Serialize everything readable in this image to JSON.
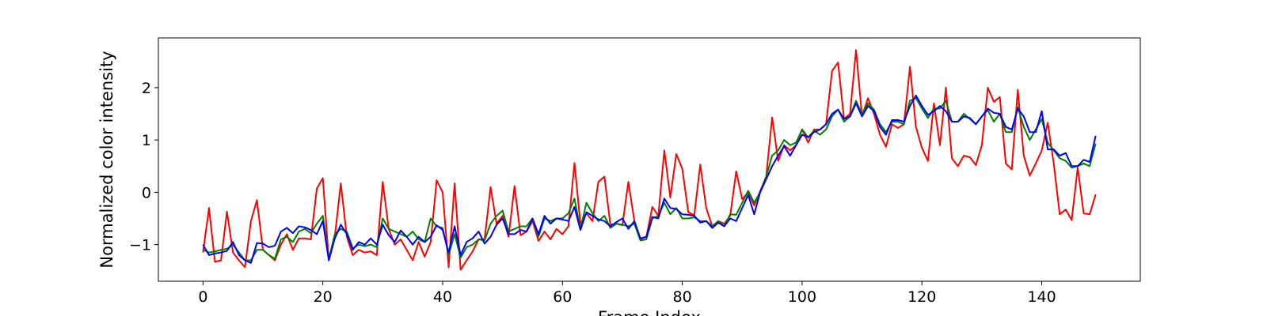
{
  "chart_data": {
    "type": "line",
    "title": "",
    "xlabel": "Frame Index",
    "ylabel": "Normalized color intensity",
    "xlim": [
      -7.45,
      156.45
    ],
    "ylim": [
      -1.7,
      2.95
    ],
    "xticks": [
      0,
      20,
      40,
      60,
      80,
      100,
      120,
      140
    ],
    "yticks": [
      -1,
      0,
      1,
      2
    ],
    "grid": false,
    "legend": "none",
    "series": [
      {
        "color": "#ff0000",
        "x_start": 0,
        "values": [
          -1.15,
          -0.3,
          -1.33,
          -1.3,
          -0.37,
          -1.15,
          -1.3,
          -1.43,
          -0.55,
          -0.15,
          -1.1,
          -1.2,
          -1.3,
          -1.0,
          -0.8,
          -1.1,
          -0.88,
          -0.88,
          -0.9,
          0.07,
          0.27,
          -1.3,
          -0.85,
          0.17,
          -0.85,
          -1.2,
          -1.1,
          -1.15,
          -1.13,
          -1.2,
          0.2,
          -0.7,
          -1.0,
          -0.9,
          -1.1,
          -1.3,
          -0.95,
          -1.23,
          -0.95,
          0.23,
          0.0,
          -1.43,
          0.17,
          -1.48,
          -1.3,
          -1.13,
          -0.9,
          -0.9,
          0.1,
          -0.6,
          -0.45,
          -0.85,
          0.12,
          -0.82,
          -0.75,
          -0.55,
          -0.93,
          -0.75,
          -0.9,
          -0.7,
          -0.8,
          -0.65,
          0.56,
          -0.6,
          -0.4,
          -0.55,
          0.2,
          0.3,
          -0.62,
          -0.6,
          -0.63,
          0.2,
          -0.55,
          -0.9,
          -0.85,
          -0.28,
          -0.45,
          0.8,
          -0.1,
          0.73,
          0.45,
          -0.38,
          -0.44,
          0.53,
          -0.3,
          -0.65,
          -0.55,
          -0.6,
          -0.45,
          0.4,
          -0.13,
          0.0,
          -0.25,
          0.02,
          0.3,
          1.43,
          0.6,
          0.9,
          0.8,
          0.9,
          1.2,
          0.95,
          1.2,
          1.2,
          1.3,
          2.32,
          2.48,
          1.4,
          1.5,
          2.72,
          1.45,
          1.8,
          1.5,
          1.1,
          0.87,
          1.3,
          1.23,
          1.3,
          2.4,
          1.25,
          0.85,
          0.6,
          1.7,
          0.9,
          2.0,
          0.65,
          0.5,
          0.7,
          0.67,
          0.52,
          0.9,
          2.0,
          1.73,
          1.82,
          0.55,
          0.44,
          1.96,
          0.7,
          0.32,
          0.55,
          0.8,
          1.33,
          0.55,
          -0.42,
          -0.33,
          -0.53,
          0.47,
          -0.4,
          -0.42,
          -0.04
        ]
      },
      {
        "color": "#008000",
        "x_start": 0,
        "values": [
          -1.1,
          -1.15,
          -1.13,
          -1.1,
          -1.08,
          -1.0,
          -1.15,
          -1.3,
          -1.3,
          -1.1,
          -1.1,
          -1.2,
          -1.27,
          -0.9,
          -0.85,
          -0.95,
          -0.75,
          -0.7,
          -0.78,
          -0.6,
          -0.45,
          -1.28,
          -0.8,
          -0.7,
          -0.75,
          -1.07,
          -1.0,
          -1.03,
          -1.0,
          -1.05,
          -0.5,
          -0.7,
          -0.75,
          -0.8,
          -0.85,
          -0.75,
          -0.9,
          -0.95,
          -0.5,
          -0.65,
          -0.68,
          -1.2,
          -0.8,
          -1.25,
          -1.05,
          -1.0,
          -0.9,
          -0.92,
          -0.6,
          -0.45,
          -0.35,
          -0.75,
          -0.7,
          -0.65,
          -0.65,
          -0.5,
          -0.85,
          -0.5,
          -0.55,
          -0.5,
          -0.5,
          -0.4,
          -0.12,
          -0.7,
          -0.2,
          -0.4,
          -0.55,
          -0.45,
          -0.68,
          -0.6,
          -0.62,
          -0.65,
          -0.6,
          -0.92,
          -0.9,
          -0.5,
          -0.45,
          -0.2,
          -0.42,
          -0.3,
          -0.5,
          -0.5,
          -0.48,
          -0.55,
          -0.55,
          -0.65,
          -0.55,
          -0.65,
          -0.42,
          -0.43,
          -0.2,
          0.03,
          -0.2,
          0.0,
          0.3,
          0.7,
          0.8,
          1.0,
          0.9,
          0.95,
          1.2,
          1.05,
          1.18,
          1.1,
          1.2,
          1.45,
          1.58,
          1.35,
          1.45,
          1.75,
          1.5,
          1.7,
          1.58,
          1.3,
          1.15,
          1.35,
          1.35,
          1.3,
          1.75,
          1.8,
          1.6,
          1.42,
          1.6,
          1.6,
          1.75,
          1.35,
          1.35,
          1.5,
          1.4,
          1.3,
          1.45,
          1.57,
          1.35,
          1.5,
          1.15,
          1.15,
          1.63,
          1.25,
          1.0,
          1.2,
          1.4,
          0.95,
          0.8,
          0.65,
          0.6,
          0.47,
          0.5,
          0.55,
          0.5,
          0.93
        ]
      },
      {
        "color": "#0000ff",
        "x_start": 0,
        "values": [
          -1.0,
          -1.2,
          -1.17,
          -1.15,
          -1.12,
          -0.95,
          -1.2,
          -1.3,
          -1.35,
          -0.97,
          -0.98,
          -1.05,
          -1.02,
          -0.75,
          -0.68,
          -0.78,
          -0.65,
          -0.67,
          -0.72,
          -0.8,
          -0.55,
          -1.3,
          -0.88,
          -0.62,
          -0.8,
          -1.1,
          -0.95,
          -1.0,
          -0.88,
          -1.0,
          -0.62,
          -0.82,
          -0.95,
          -0.73,
          -0.85,
          -1.0,
          -0.85,
          -0.95,
          -0.85,
          -0.63,
          -0.72,
          -1.15,
          -0.65,
          -1.2,
          -0.95,
          -0.88,
          -0.75,
          -0.98,
          -0.85,
          -0.62,
          -0.5,
          -0.8,
          -0.8,
          -0.72,
          -0.75,
          -0.5,
          -0.8,
          -0.45,
          -0.6,
          -0.5,
          -0.52,
          -0.55,
          -0.28,
          -0.72,
          -0.38,
          -0.45,
          -0.52,
          -0.55,
          -0.65,
          -0.57,
          -0.5,
          -0.7,
          -0.55,
          -0.88,
          -0.85,
          -0.47,
          -0.5,
          -0.12,
          -0.3,
          -0.32,
          -0.42,
          -0.43,
          -0.45,
          -0.58,
          -0.55,
          -0.68,
          -0.58,
          -0.65,
          -0.5,
          -0.55,
          -0.3,
          -0.05,
          -0.42,
          0.0,
          0.25,
          0.5,
          0.7,
          0.88,
          0.7,
          0.9,
          1.1,
          1.05,
          1.15,
          1.2,
          1.3,
          1.5,
          1.58,
          1.4,
          1.45,
          1.7,
          1.45,
          1.65,
          1.55,
          1.25,
          1.1,
          1.38,
          1.38,
          1.35,
          1.65,
          1.85,
          1.65,
          1.48,
          1.55,
          1.65,
          1.55,
          1.35,
          1.35,
          1.45,
          1.42,
          1.3,
          1.45,
          1.6,
          1.52,
          1.5,
          1.25,
          1.2,
          1.6,
          1.45,
          1.15,
          1.15,
          1.55,
          0.82,
          0.82,
          0.7,
          0.75,
          0.5,
          0.5,
          0.62,
          0.58,
          1.08
        ]
      }
    ]
  }
}
